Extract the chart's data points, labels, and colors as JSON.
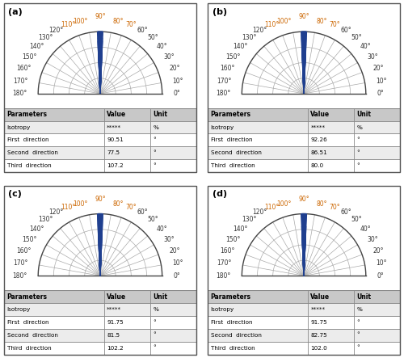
{
  "panels": [
    {
      "label": "(a)",
      "first_direction": 90.51,
      "second_direction": 77.5,
      "third_direction": 107.2,
      "isotropy": "*****"
    },
    {
      "label": "(b)",
      "first_direction": 92.26,
      "second_direction": 86.51,
      "third_direction": 80.0,
      "isotropy": "*****"
    },
    {
      "label": "(c)",
      "first_direction": 91.75,
      "second_direction": 81.5,
      "third_direction": 102.2,
      "isotropy": "*****"
    },
    {
      "label": "(d)",
      "first_direction": 91.75,
      "second_direction": 82.75,
      "third_direction": 102.0,
      "isotropy": "*****"
    }
  ],
  "angle_labels": [
    0,
    10,
    20,
    30,
    40,
    50,
    60,
    70,
    80,
    90,
    100,
    110,
    120,
    130,
    140,
    150,
    160,
    170,
    180
  ],
  "orange_angles": [
    70,
    80,
    90,
    100,
    110
  ],
  "blue_color": "#1F3F8F",
  "line_color": "#AAAAAA",
  "arc_color": "#444444",
  "background": "#ffffff",
  "label_color_orange": "#CC6600",
  "label_color_dark": "#333333",
  "table_header_bg": "#C8C8C8",
  "table_row_alt_bg": "#ECECEC",
  "table_border_color": "#888888"
}
